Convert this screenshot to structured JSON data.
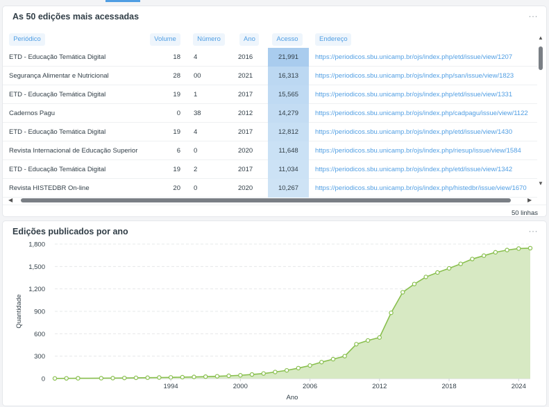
{
  "table_card": {
    "title": "As 50 edições mais acessadas",
    "menu": "···",
    "columns": [
      "Periódico",
      "Volume",
      "Número",
      "Ano",
      "Acesso",
      "Endereço"
    ],
    "rows": [
      [
        "ETD - Educação Temática Digital",
        "18",
        "4",
        "2016",
        "21,991",
        "https://periodicos.sbu.unicamp.br/ojs/index.php/etd/issue/view/1207"
      ],
      [
        "Segurança Alimentar e Nutricional",
        "28",
        "00",
        "2021",
        "16,313",
        "https://periodicos.sbu.unicamp.br/ojs/index.php/san/issue/view/1823"
      ],
      [
        "ETD - Educação Temática Digital",
        "19",
        "1",
        "2017",
        "15,565",
        "https://periodicos.sbu.unicamp.br/ojs/index.php/etd/issue/view/1331"
      ],
      [
        "Cadernos Pagu",
        "0",
        "38",
        "2012",
        "14,279",
        "https://periodicos.sbu.unicamp.br/ojs/index.php/cadpagu/issue/view/1122"
      ],
      [
        "ETD - Educação Temática Digital",
        "19",
        "4",
        "2017",
        "12,812",
        "https://periodicos.sbu.unicamp.br/ojs/index.php/etd/issue/view/1430"
      ],
      [
        "Revista Internacional de Educação Superior",
        "6",
        "0",
        "2020",
        "11,648",
        "https://periodicos.sbu.unicamp.br/ojs/index.php/riesup/issue/view/1584"
      ],
      [
        "ETD - Educação Temática Digital",
        "19",
        "2",
        "2017",
        "11,034",
        "https://periodicos.sbu.unicamp.br/ojs/index.php/etd/issue/view/1342"
      ],
      [
        "Revista HISTEDBR On-line",
        "20",
        "0",
        "2020",
        "10,267",
        "https://periodicos.sbu.unicamp.br/ojs/index.php/histedbr/issue/view/1670"
      ]
    ],
    "row_count": "50 linhas",
    "highlight_color": "#509ee3"
  },
  "chart_card": {
    "title": "Edições publicados por ano",
    "menu": "···"
  },
  "chart_data": {
    "type": "area",
    "title": "Edições publicados por ano",
    "xlabel": "Ano",
    "ylabel": "Quantidade",
    "xlim": [
      1984,
      2025
    ],
    "ylim": [
      0,
      1800
    ],
    "xticks": [
      "1994",
      "2000",
      "2006",
      "2012",
      "2018",
      "2024"
    ],
    "yticks": [
      "0",
      "300",
      "600",
      "900",
      "1,200",
      "1,500",
      "1,800"
    ],
    "x": [
      1984,
      1985,
      1986,
      1988,
      1989,
      1990,
      1991,
      1992,
      1993,
      1994,
      1995,
      1996,
      1997,
      1998,
      1999,
      2000,
      2001,
      2002,
      2003,
      2004,
      2005,
      2006,
      2007,
      2008,
      2009,
      2010,
      2011,
      2012,
      2013,
      2014,
      2015,
      2016,
      2017,
      2018,
      2019,
      2020,
      2021,
      2022,
      2023,
      2024,
      2025
    ],
    "y": [
      2,
      3,
      4,
      5,
      6,
      8,
      10,
      12,
      14,
      16,
      19,
      22,
      26,
      31,
      37,
      44,
      55,
      68,
      88,
      110,
      140,
      175,
      220,
      260,
      300,
      460,
      510,
      550,
      880,
      1155,
      1265,
      1360,
      1420,
      1475,
      1535,
      1600,
      1645,
      1690,
      1720,
      1740,
      1745
    ],
    "grid": true,
    "legend": "none",
    "line_color": "#88bf4d",
    "fill_color": "#d7e9c3"
  }
}
